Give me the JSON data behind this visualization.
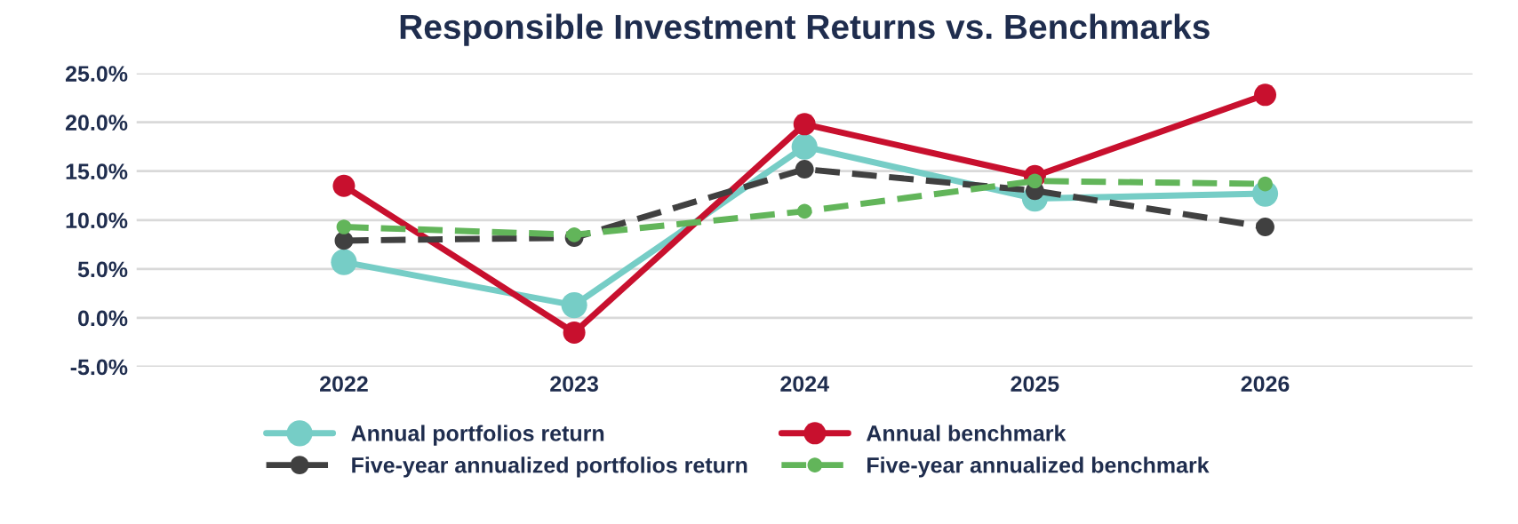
{
  "chart_data": {
    "type": "line",
    "title": "Responsible Investment Returns vs. Benchmarks",
    "categories": [
      "2022",
      "2023",
      "2024",
      "2025",
      "2026"
    ],
    "series": [
      {
        "name": "Annual portfolios return",
        "color": "#76cdc6",
        "values": [
          5.7,
          1.3,
          17.5,
          12.2,
          12.7
        ],
        "line_style": "solid"
      },
      {
        "name": "Annual benchmark",
        "color": "#c8102e",
        "values": [
          13.5,
          -1.5,
          19.8,
          14.5,
          22.8
        ],
        "line_style": "solid"
      },
      {
        "name": "Five-year annualized portfolios return",
        "color": "#404040",
        "values": [
          7.9,
          8.2,
          15.2,
          13.0,
          9.3
        ],
        "line_style": "dashed"
      },
      {
        "name": "Five-year annualized benchmark",
        "color": "#62b55a",
        "values": [
          9.3,
          8.5,
          10.9,
          14.0,
          13.7
        ],
        "line_style": "dashed"
      }
    ],
    "ylim": [
      -5,
      25
    ],
    "yticks": [
      {
        "value": -5,
        "label": "-5.0%"
      },
      {
        "value": 0,
        "label": "0.0%"
      },
      {
        "value": 5,
        "label": "5.0%"
      },
      {
        "value": 10,
        "label": "10.0%"
      },
      {
        "value": 15,
        "label": "15.0%"
      },
      {
        "value": 20,
        "label": "20.0%"
      },
      {
        "value": 25,
        "label": "25.0%"
      }
    ],
    "grid": "y",
    "marker": "circle",
    "legend": "bottom"
  }
}
